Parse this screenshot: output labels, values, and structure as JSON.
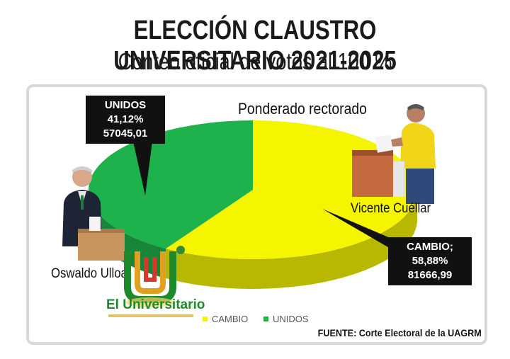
{
  "header": {
    "title": "ELECCIÓN CLAUSTRO UNIVERSITARIO 2021-2025",
    "subtitle": "Conteo oficial de votos al 100 %"
  },
  "chart_data": {
    "type": "pie",
    "title": "Ponderado rectorado",
    "slices": [
      {
        "name": "CAMBIO",
        "percent": 58.88,
        "percent_label": "58,88%",
        "value": 81666.99,
        "value_label": "81666,99",
        "color": "#f5f500",
        "candidate": "Vicente Cuéllar"
      },
      {
        "name": "UNIDOS",
        "percent": 41.12,
        "percent_label": "41,12%",
        "value": 57045.01,
        "value_label": "57045,01",
        "color": "#1eb24c",
        "candidate": "Oswaldo Ulloa"
      }
    ],
    "legend": {
      "position": "bottom",
      "items": [
        "CAMBIO",
        "UNIDOS"
      ]
    }
  },
  "callouts": {
    "unidos": {
      "name": "UNIDOS",
      "percent": "41,12%",
      "value": "57045,01"
    },
    "cambio": {
      "name": "CAMBIO;",
      "percent": "58,88%",
      "value": "81666,99"
    }
  },
  "candidates": {
    "left": "Oswaldo Ulloa",
    "right": "Vicente Cuéllar"
  },
  "logo": {
    "text": "El Universitario"
  },
  "source": "FUENTE: Corte Electoral de la UAGRM",
  "colors": {
    "cambio": "#f5f500",
    "cambio_dark": "#b8b800",
    "unidos": "#1eb24c",
    "unidos_dark": "#128a35"
  }
}
